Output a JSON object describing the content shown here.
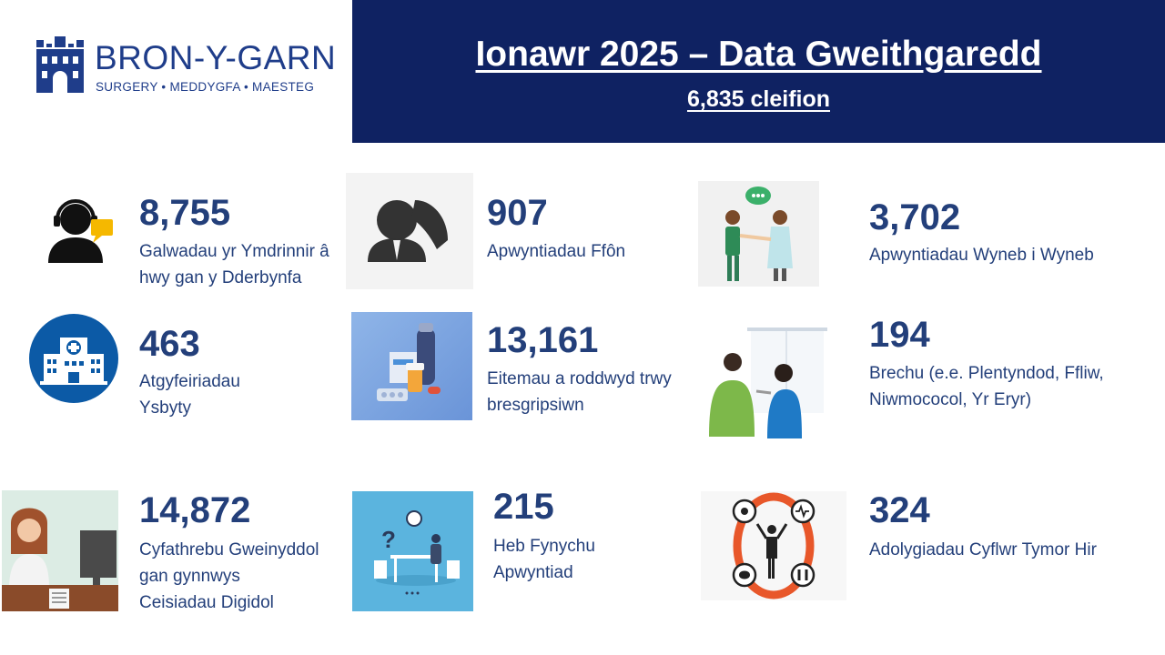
{
  "logo": {
    "name": "BRON-Y-GARN",
    "tagline": "SURGERY • MEDDYGFA • MAESTEG"
  },
  "header": {
    "title": "Ionawr 2025 – Data Gweithgaredd",
    "subtitle": "6,835 cleifion"
  },
  "stats": [
    {
      "value": "8,755",
      "label": "Galwadau yr Ymdrinnir â hwy gan y Dderbynfa",
      "icon": "receptionist-headset-icon"
    },
    {
      "value": "907",
      "label": "Apwyntiadau Ffôn",
      "icon": "phone-call-icon"
    },
    {
      "value": "3,702",
      "label": "Apwyntiadau Wyneb i Wyneb",
      "icon": "doctor-patient-handshake-icon"
    },
    {
      "value": "463",
      "label": "Atgyfeiriadau Ysbyty",
      "icon": "hospital-icon"
    },
    {
      "value": "13,161",
      "label": "Eitemau a roddwyd trwy bresgripsiwn",
      "icon": "medicines-icon"
    },
    {
      "value": "194",
      "label": "Brechu (e.e. Plentyndod, Ffliw, Niwmococol, Yr Eryr)",
      "icon": "vaccination-icon"
    },
    {
      "value": "14,872",
      "label": "Cyfathrebu Gweinyddol gan gynnwys Ceisiadau Digidol",
      "icon": "admin-desk-icon"
    },
    {
      "value": "215",
      "label": "Heb Fynychu Apwyntiad",
      "icon": "missed-appointment-icon"
    },
    {
      "value": "324",
      "label": "Adolygiadau Cyflwr Tymor Hir",
      "icon": "long-term-condition-icon"
    }
  ],
  "colors": {
    "navy": "#0f2262",
    "text": "#233f7a",
    "logo": "#1f3d8a",
    "hospital_blue": "#0c5aa6",
    "ring_orange": "#e8572a"
  }
}
